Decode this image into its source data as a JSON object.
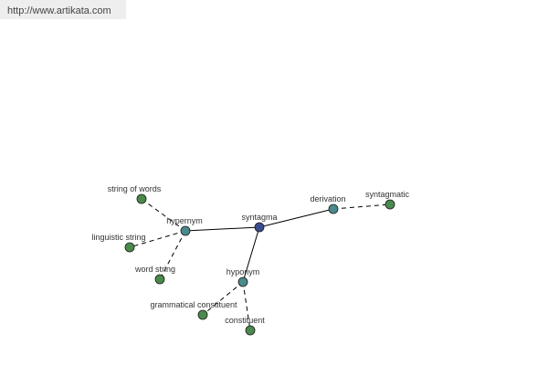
{
  "header": {
    "url": "http://www.artikata.com"
  },
  "nodes": [
    {
      "label": "syntagma"
    },
    {
      "label": "hypernym"
    },
    {
      "label": "derivation"
    },
    {
      "label": "syntagmatic"
    },
    {
      "label": "string of words"
    },
    {
      "label": "linguistic string"
    },
    {
      "label": "word string"
    },
    {
      "label": "hyponym"
    },
    {
      "label": "grammatical constituent"
    },
    {
      "label": "constituent"
    }
  ]
}
